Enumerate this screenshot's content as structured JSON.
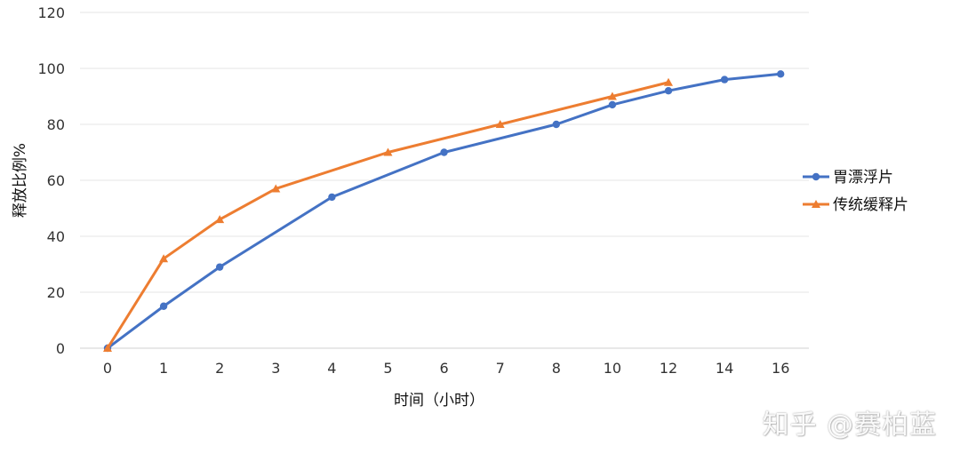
{
  "chart_data": {
    "type": "line",
    "title": "",
    "xlabel": "时间（小时）",
    "ylabel": "释放比例%",
    "x": [
      "0",
      "1",
      "2",
      "3",
      "4",
      "5",
      "6",
      "7",
      "8",
      "10",
      "12",
      "14",
      "16"
    ],
    "ylim": [
      0,
      120
    ],
    "yticks": [
      0,
      20,
      40,
      60,
      80,
      100,
      120
    ],
    "grid": true,
    "legend_position": "right",
    "series": [
      {
        "name": "胃漂浮片",
        "color": "#4472C4",
        "marker": "circle",
        "values": [
          0,
          15,
          29,
          null,
          54,
          null,
          70,
          null,
          80,
          87,
          92,
          96,
          98
        ]
      },
      {
        "name": "传统缓释片",
        "color": "#ED7D31",
        "marker": "triangle",
        "values": [
          0,
          32,
          46,
          57,
          null,
          70,
          null,
          80,
          null,
          90,
          95,
          null,
          null
        ]
      }
    ]
  },
  "watermark": {
    "text": "知乎 @赛柏蓝"
  }
}
